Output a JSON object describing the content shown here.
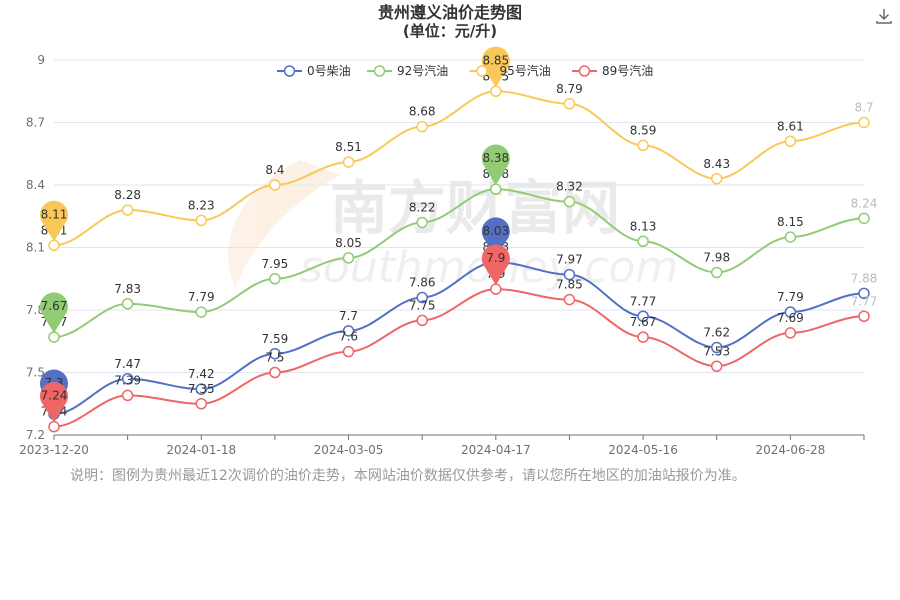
{
  "header": {
    "title": "贵州遵义油价走势图",
    "subtitle": "(单位：元/升)"
  },
  "toolbar": {
    "download_icon": "download-icon"
  },
  "watermark": {
    "cn": "南方财富网",
    "en": "southmoney.com"
  },
  "note": "说明：图例为贵州最近12次调价的油价走势，本网站油价数据仅供参考，请以您所在地区的加油站报价为准。",
  "chart_data": {
    "type": "line",
    "title": "贵州遵义油价走势图",
    "subtitle": "(单位：元/升)",
    "xlabel": "",
    "ylabel": "",
    "ylim": [
      7.2,
      9
    ],
    "yticks": [
      "7.2",
      "7.5",
      "7.8",
      "8.1",
      "8.4",
      "8.7",
      "9"
    ],
    "xtick_labels": [
      "2023-12-20",
      "2024-01-18",
      "2024-03-05",
      "2024-04-17",
      "2024-05-16",
      "2024-06-28"
    ],
    "xtick_indices": [
      0,
      2,
      4,
      6,
      8,
      10
    ],
    "legend_position": "top",
    "grid": true,
    "smooth": true,
    "series": [
      {
        "name": "0号柴油",
        "color": "#5470c6",
        "values": [
          7.3,
          7.47,
          7.42,
          7.59,
          7.7,
          7.86,
          8.03,
          7.97,
          7.77,
          7.62,
          7.79,
          7.88
        ],
        "max": 8.03,
        "min": 7.3
      },
      {
        "name": "92号汽油",
        "color": "#91cc75",
        "values": [
          7.67,
          7.83,
          7.79,
          7.95,
          8.05,
          8.22,
          8.38,
          8.32,
          8.13,
          7.98,
          8.15,
          8.24
        ],
        "max": 8.38,
        "min": 7.67
      },
      {
        "name": "95号汽油",
        "color": "#fac858",
        "values": [
          8.11,
          8.28,
          8.23,
          8.4,
          8.51,
          8.68,
          8.85,
          8.79,
          8.59,
          8.43,
          8.61,
          8.7
        ],
        "max": 8.85,
        "min": 8.11
      },
      {
        "name": "89号汽油",
        "color": "#ee6666",
        "values": [
          7.24,
          7.39,
          7.35,
          7.5,
          7.6,
          7.75,
          7.9,
          7.85,
          7.67,
          7.53,
          7.69,
          7.77
        ],
        "max": 7.9,
        "min": 7.24
      }
    ]
  }
}
